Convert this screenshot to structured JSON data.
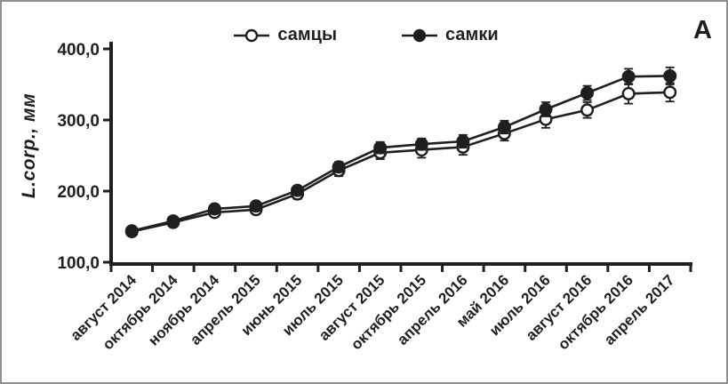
{
  "panel": {
    "label": "А"
  },
  "chart_data": {
    "type": "line",
    "title": "",
    "xlabel": "",
    "ylabel": "L.corp., мм",
    "ink_color": "#1f1f1f",
    "grid": false,
    "legend_position": "top-center",
    "ylim": [
      100,
      400
    ],
    "yticks": [
      "100,0",
      "200,0",
      "300,0",
      "400,0"
    ],
    "ytick_values": [
      100,
      200,
      300,
      400
    ],
    "categories": [
      "август 2014",
      "октябрь 2014",
      "ноябрь 2014",
      "апрель 2015",
      "июнь 2015",
      "июль 2015",
      "август 2015",
      "октябрь 2015",
      "апрель 2016",
      "май 2016",
      "июль 2016",
      "август 2016",
      "октябрь 2016",
      "апрель 2017"
    ],
    "series": [
      {
        "name": "самцы",
        "marker": "open-circle",
        "values": [
          143,
          156,
          170,
          174,
          196,
          229,
          254,
          258,
          262,
          281,
          301,
          314,
          337,
          339
        ],
        "errors": [
          3,
          3,
          5,
          6,
          7,
          8,
          9,
          11,
          11,
          10,
          12,
          11,
          14,
          13
        ]
      },
      {
        "name": "самки",
        "marker": "filled-circle",
        "values": [
          144,
          158,
          175,
          179,
          201,
          234,
          261,
          266,
          270,
          290,
          315,
          338,
          361,
          362
        ],
        "errors": [
          3,
          3,
          5,
          5,
          6,
          7,
          8,
          8,
          9,
          9,
          10,
          10,
          11,
          12
        ]
      }
    ]
  }
}
